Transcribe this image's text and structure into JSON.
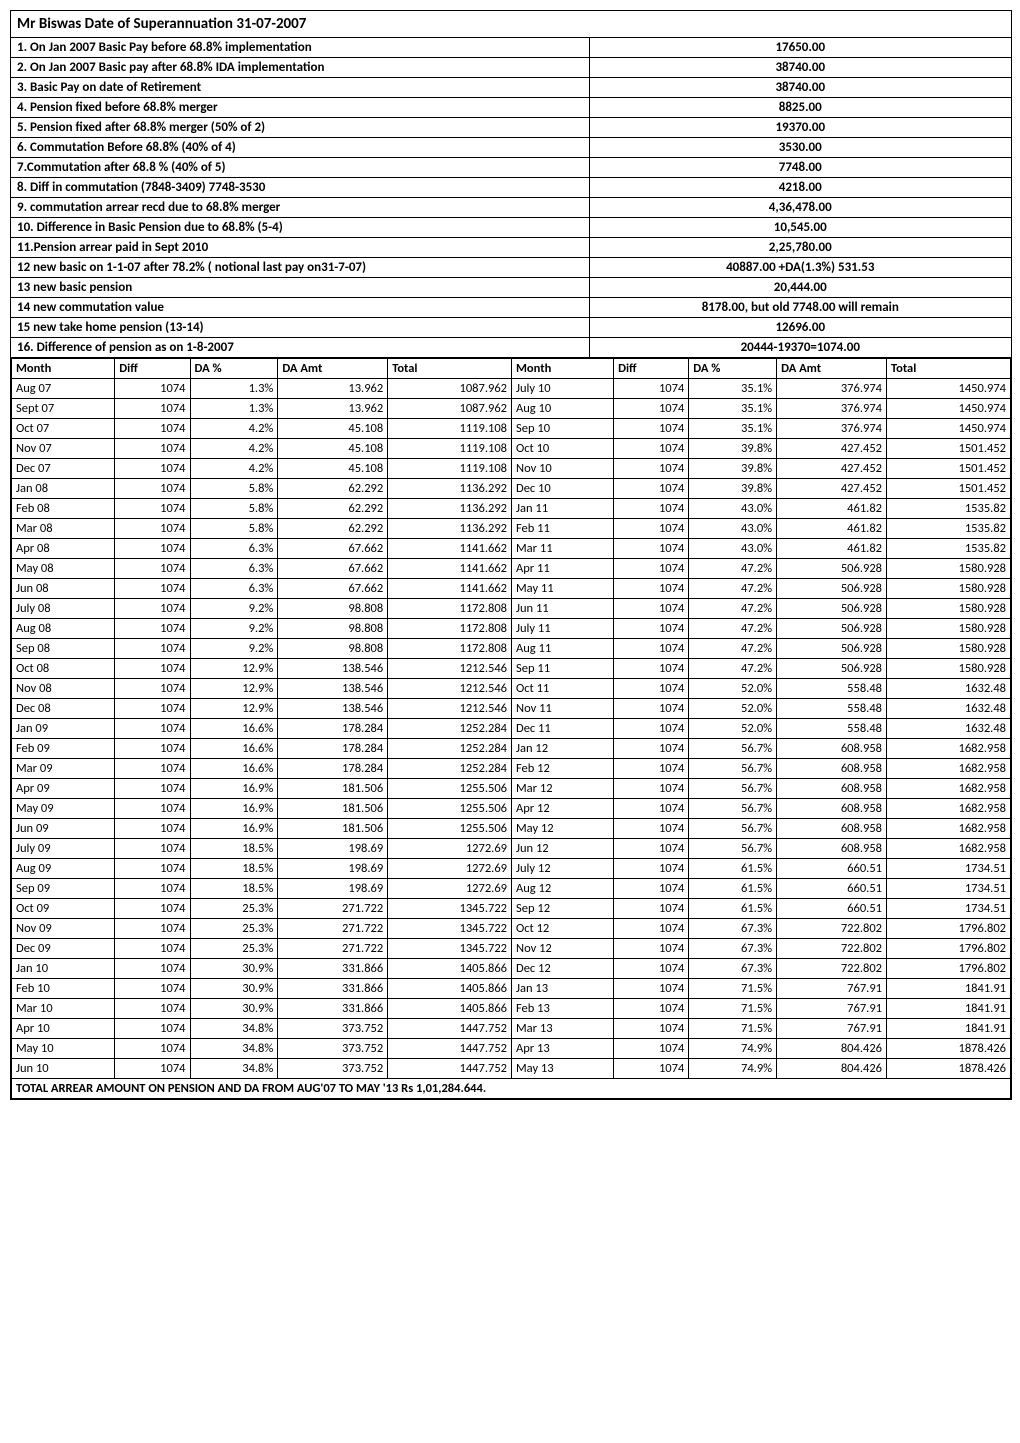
{
  "title": "Mr  Biswas  Date of Superannuation 31-07-2007",
  "meta": [
    {
      "label": "1. On Jan 2007  Basic Pay before 68.8% implementation",
      "value": "17650.00",
      "bold": true
    },
    {
      "label": "2. On Jan 2007 Basic pay after 68.8% IDA implementation",
      "value": "38740.00",
      "bold": true
    },
    {
      "label": "3. Basic Pay on date of Retirement",
      "value": "38740.00",
      "bold": true
    },
    {
      "label": "4. Pension fixed before 68.8% merger",
      "value": "8825.00",
      "bold": true
    },
    {
      "label": "5. Pension fixed after 68.8% merger  (50% of 2)",
      "value": "19370.00",
      "bold": true
    },
    {
      "label": "6. Commutation Before 68.8%             (40% of 4)",
      "value": "3530.00",
      "bold": true
    },
    {
      "label": "7.Commutation after 68.8 %              (40% of 5)",
      "value": "7748.00",
      "bold": true
    },
    {
      "label": "8. Diff in commutation  (7848-3409) 7748-3530",
      "value": "4218.00",
      "bold": true
    },
    {
      "label": "9. commutation arrear recd due to 68.8% merger",
      "value": "4,36,478.00",
      "bold": true
    },
    {
      "label": "10. Difference in Basic Pension due to 68.8%   (5-4)",
      "value": "10,545.00",
      "bold": true
    },
    {
      "label": "11.Pension arrear paid in Sept 2010",
      "value": "2,25,780.00",
      "bold": true
    },
    {
      "label": "12 new basic on 1-1-07 after 78.2% ( notional last pay on31-7-07)",
      "value": "40887.00 +DA(1.3%) 531.53",
      "bold": true
    },
    {
      "label": "13 new basic pension",
      "value": "20,444.00",
      "bold": true
    },
    {
      "label": "14 new commutation value",
      "value": "8178.00, but old 7748.00 will remain",
      "bold": true
    },
    {
      "label": "15 new take home pension    (13-14)",
      "value": "12696.00",
      "bold": true
    },
    {
      "label": "16. Difference of pension as on 1-8-2007",
      "value": "20444-19370=1074.00",
      "bold": true
    }
  ],
  "headers": [
    "Month",
    "Diff",
    "DA %",
    "DA Amt",
    "Total",
    "Month",
    "Diff",
    "DA %",
    "DA Amt",
    "Total"
  ],
  "rows": [
    [
      "Aug 07",
      "1074",
      "1.3%",
      "13.962",
      "1087.962",
      "July 10",
      "1074",
      "35.1%",
      "376.974",
      "1450.974"
    ],
    [
      "Sept 07",
      "1074",
      "1.3%",
      "13.962",
      "1087.962",
      "Aug 10",
      "1074",
      "35.1%",
      "376.974",
      "1450.974"
    ],
    [
      "Oct 07",
      "1074",
      "4.2%",
      "45.108",
      "1119.108",
      "Sep 10",
      "1074",
      "35.1%",
      "376.974",
      "1450.974"
    ],
    [
      "Nov 07",
      "1074",
      "4.2%",
      "45.108",
      "1119.108",
      "Oct 10",
      "1074",
      "39.8%",
      "427.452",
      "1501.452"
    ],
    [
      "Dec 07",
      "1074",
      "4.2%",
      "45.108",
      "1119.108",
      "Nov 10",
      "1074",
      "39.8%",
      "427.452",
      "1501.452"
    ],
    [
      "Jan 08",
      "1074",
      "5.8%",
      "62.292",
      "1136.292",
      "Dec 10",
      "1074",
      "39.8%",
      "427.452",
      "1501.452"
    ],
    [
      "Feb 08",
      "1074",
      "5.8%",
      "62.292",
      "1136.292",
      "Jan 11",
      "1074",
      "43.0%",
      "461.82",
      "1535.82"
    ],
    [
      "Mar 08",
      "1074",
      "5.8%",
      "62.292",
      "1136.292",
      "Feb 11",
      "1074",
      "43.0%",
      "461.82",
      "1535.82"
    ],
    [
      "Apr 08",
      "1074",
      "6.3%",
      "67.662",
      "1141.662",
      "Mar 11",
      "1074",
      "43.0%",
      "461.82",
      "1535.82"
    ],
    [
      "May 08",
      "1074",
      "6.3%",
      "67.662",
      "1141.662",
      "Apr 11",
      "1074",
      "47.2%",
      "506.928",
      "1580.928"
    ],
    [
      "Jun 08",
      "1074",
      "6.3%",
      "67.662",
      "1141.662",
      "May 11",
      "1074",
      "47.2%",
      "506.928",
      "1580.928"
    ],
    [
      "July 08",
      "1074",
      "9.2%",
      "98.808",
      "1172.808",
      "Jun 11",
      "1074",
      "47.2%",
      "506.928",
      "1580.928"
    ],
    [
      "Aug 08",
      "1074",
      "9.2%",
      "98.808",
      "1172.808",
      "July 11",
      "1074",
      "47.2%",
      "506.928",
      "1580.928"
    ],
    [
      "Sep 08",
      "1074",
      "9.2%",
      "98.808",
      "1172.808",
      "Aug 11",
      "1074",
      "47.2%",
      "506.928",
      "1580.928"
    ],
    [
      "Oct 08",
      "1074",
      "12.9%",
      "138.546",
      "1212.546",
      "Sep 11",
      "1074",
      "47.2%",
      "506.928",
      "1580.928"
    ],
    [
      "Nov 08",
      "1074",
      "12.9%",
      "138.546",
      "1212.546",
      "Oct 11",
      "1074",
      "52.0%",
      "558.48",
      "1632.48"
    ],
    [
      "Dec 08",
      "1074",
      "12.9%",
      "138.546",
      "1212.546",
      "Nov 11",
      "1074",
      "52.0%",
      "558.48",
      "1632.48"
    ],
    [
      "Jan 09",
      "1074",
      "16.6%",
      "178.284",
      "1252.284",
      "Dec 11",
      "1074",
      "52.0%",
      "558.48",
      "1632.48"
    ],
    [
      "Feb 09",
      "1074",
      "16.6%",
      "178.284",
      "1252.284",
      "Jan 12",
      "1074",
      "56.7%",
      "608.958",
      "1682.958"
    ],
    [
      "Mar 09",
      "1074",
      "16.6%",
      "178.284",
      "1252.284",
      "Feb 12",
      "1074",
      "56.7%",
      "608.958",
      "1682.958"
    ],
    [
      "Apr 09",
      "1074",
      "16.9%",
      "181.506",
      "1255.506",
      "Mar 12",
      "1074",
      "56.7%",
      "608.958",
      "1682.958"
    ],
    [
      "May 09",
      "1074",
      "16.9%",
      "181.506",
      "1255.506",
      "Apr 12",
      "1074",
      "56.7%",
      "608.958",
      "1682.958"
    ],
    [
      "Jun 09",
      "1074",
      "16.9%",
      "181.506",
      "1255.506",
      "May 12",
      "1074",
      "56.7%",
      "608.958",
      "1682.958"
    ],
    [
      "July 09",
      "1074",
      "18.5%",
      "198.69",
      "1272.69",
      "Jun 12",
      "1074",
      "56.7%",
      "608.958",
      "1682.958"
    ],
    [
      "Aug 09",
      "1074",
      "18.5%",
      "198.69",
      "1272.69",
      "July 12",
      "1074",
      "61.5%",
      "660.51",
      "1734.51"
    ],
    [
      "Sep 09",
      "1074",
      "18.5%",
      "198.69",
      "1272.69",
      "Aug 12",
      "1074",
      "61.5%",
      "660.51",
      "1734.51"
    ],
    [
      "Oct 09",
      "1074",
      "25.3%",
      "271.722",
      "1345.722",
      "Sep 12",
      "1074",
      "61.5%",
      "660.51",
      "1734.51"
    ],
    [
      "Nov 09",
      "1074",
      "25.3%",
      "271.722",
      "1345.722",
      "Oct 12",
      "1074",
      "67.3%",
      "722.802",
      "1796.802"
    ],
    [
      "Dec 09",
      "1074",
      "25.3%",
      "271.722",
      "1345.722",
      "Nov 12",
      "1074",
      "67.3%",
      "722.802",
      "1796.802"
    ],
    [
      "Jan 10",
      "1074",
      "30.9%",
      "331.866",
      "1405.866",
      "Dec 12",
      "1074",
      "67.3%",
      "722.802",
      "1796.802"
    ],
    [
      "Feb 10",
      "1074",
      "30.9%",
      "331.866",
      "1405.866",
      "Jan 13",
      "1074",
      "71.5%",
      "767.91",
      "1841.91"
    ],
    [
      "Mar 10",
      "1074",
      "30.9%",
      "331.866",
      "1405.866",
      "Feb 13",
      "1074",
      "71.5%",
      "767.91",
      "1841.91"
    ],
    [
      "Apr 10",
      "1074",
      "34.8%",
      "373.752",
      "1447.752",
      "Mar 13",
      "1074",
      "71.5%",
      "767.91",
      "1841.91"
    ],
    [
      "May 10",
      "1074",
      "34.8%",
      "373.752",
      "1447.752",
      "Apr 13",
      "1074",
      "74.9%",
      "804.426",
      "1878.426"
    ],
    [
      "Jun 10",
      "1074",
      "34.8%",
      "373.752",
      "1447.752",
      "May 13",
      "1074",
      "74.9%",
      "804.426",
      "1878.426"
    ]
  ],
  "footer": "TOTAL ARREAR AMOUNT ON PENSION AND DA FROM AUG'07 TO MAY '13   Rs 1,01,284.644."
}
